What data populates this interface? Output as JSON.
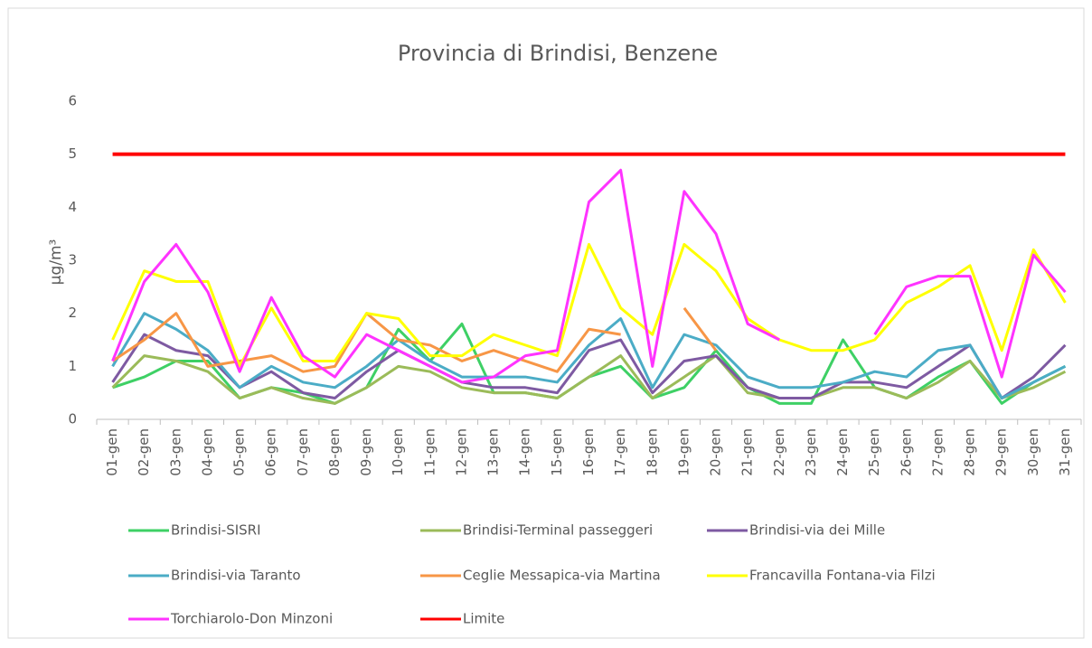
{
  "chart_data": {
    "type": "line",
    "title": "Provincia di Brindisi, Benzene",
    "y_label": "µg/m³",
    "categories": [
      "01-gen",
      "02-gen",
      "03-gen",
      "04-gen",
      "05-gen",
      "06-gen",
      "07-gen",
      "08-gen",
      "09-gen",
      "10-gen",
      "11-gen",
      "12-gen",
      "13-gen",
      "14-gen",
      "15-gen",
      "16-gen",
      "17-gen",
      "18-gen",
      "19-gen",
      "20-gen",
      "21-gen",
      "22-gen",
      "23-gen",
      "24-gen",
      "25-gen",
      "26-gen",
      "27-gen",
      "28-gen",
      "29-gen",
      "30-gen",
      "31-gen"
    ],
    "ylim": [
      0,
      6
    ],
    "yticks": [
      0,
      1,
      2,
      3,
      4,
      5,
      6
    ],
    "series": [
      {
        "name": "Brindisi-SISRI",
        "color": "#3ed065",
        "values": [
          0.6,
          0.8,
          1.1,
          1.1,
          0.4,
          0.6,
          0.5,
          0.3,
          0.6,
          1.7,
          1.1,
          1.8,
          0.5,
          0.5,
          0.4,
          0.8,
          1.0,
          0.4,
          0.6,
          1.3,
          0.6,
          0.3,
          0.3,
          1.5,
          0.6,
          0.4,
          0.8,
          1.1,
          0.3,
          0.7,
          1.0
        ]
      },
      {
        "name": "Brindisi-Terminal passeggeri",
        "color": "#9bbb59",
        "values": [
          0.6,
          1.2,
          1.1,
          0.9,
          0.4,
          0.6,
          0.4,
          0.3,
          0.6,
          1.0,
          0.9,
          0.6,
          0.5,
          0.5,
          0.4,
          0.8,
          1.2,
          0.4,
          0.8,
          1.2,
          0.5,
          0.4,
          0.4,
          0.6,
          0.6,
          0.4,
          0.7,
          1.1,
          0.4,
          0.6,
          0.9
        ]
      },
      {
        "name": "Brindisi-via dei Mille",
        "color": "#7e5aa2",
        "values": [
          0.7,
          1.6,
          1.3,
          1.2,
          0.6,
          0.9,
          0.5,
          0.4,
          0.9,
          1.3,
          1.0,
          0.7,
          0.6,
          0.6,
          0.5,
          1.3,
          1.5,
          0.5,
          1.1,
          1.2,
          0.6,
          0.4,
          0.4,
          0.7,
          0.7,
          0.6,
          1.0,
          1.4,
          0.4,
          0.8,
          1.4
        ]
      },
      {
        "name": "Brindisi-via Taranto",
        "color": "#4bacc6",
        "values": [
          1.0,
          2.0,
          1.7,
          1.3,
          0.6,
          1.0,
          0.7,
          0.6,
          1.0,
          1.5,
          1.1,
          0.8,
          0.8,
          0.8,
          0.7,
          1.4,
          1.9,
          0.6,
          1.6,
          1.4,
          0.8,
          0.6,
          0.6,
          0.7,
          0.9,
          0.8,
          1.3,
          1.4,
          0.4,
          0.7,
          1.0
        ]
      },
      {
        "name": "Ceglie Messapica-via Martina",
        "color": "#f79646",
        "values": [
          1.1,
          1.5,
          2.0,
          1.0,
          1.1,
          1.2,
          0.9,
          1.0,
          2.0,
          1.5,
          1.4,
          1.1,
          1.3,
          1.1,
          0.9,
          1.7,
          1.6,
          null,
          2.1,
          1.3,
          null,
          null,
          null,
          null,
          null,
          null,
          null,
          null,
          null,
          null,
          null
        ]
      },
      {
        "name": "Francavilla Fontana-via Filzi",
        "color": "#ffff00",
        "values": [
          1.5,
          2.8,
          2.6,
          2.6,
          1.0,
          2.1,
          1.1,
          1.1,
          2.0,
          1.9,
          1.2,
          1.2,
          1.6,
          1.4,
          1.2,
          3.3,
          2.1,
          1.6,
          3.3,
          2.8,
          1.9,
          1.5,
          1.3,
          1.3,
          1.5,
          2.2,
          2.5,
          2.9,
          1.3,
          3.2,
          2.2
        ]
      },
      {
        "name": "Torchiarolo-Don Minzoni",
        "color": "#ff33ff",
        "values": [
          1.1,
          2.6,
          3.3,
          2.4,
          0.9,
          2.3,
          1.2,
          0.8,
          1.6,
          1.3,
          1.0,
          0.7,
          0.8,
          1.2,
          1.3,
          4.1,
          4.7,
          1.0,
          4.3,
          3.5,
          1.8,
          1.5,
          null,
          null,
          1.6,
          2.5,
          2.7,
          2.7,
          0.8,
          3.1,
          2.4
        ]
      },
      {
        "name": "Limite",
        "color": "#ff0000",
        "values": [
          5,
          5,
          5,
          5,
          5,
          5,
          5,
          5,
          5,
          5,
          5,
          5,
          5,
          5,
          5,
          5,
          5,
          5,
          5,
          5,
          5,
          5,
          5,
          5,
          5,
          5,
          5,
          5,
          5,
          5,
          5
        ]
      }
    ]
  }
}
